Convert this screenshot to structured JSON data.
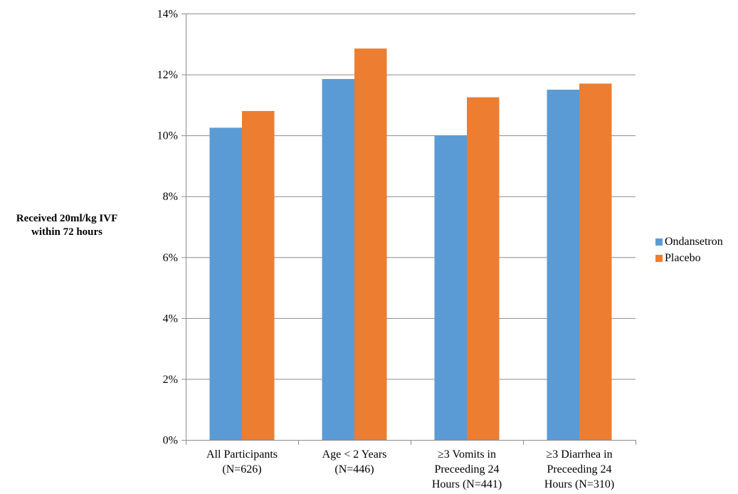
{
  "chart_data": {
    "type": "bar",
    "ylabel": "Received 20ml/kg IVF within 72 hours",
    "ylabel_lines": [
      "Received 20ml/kg IVF",
      "within 72 hours"
    ],
    "xlabel": "",
    "ylim": [
      0,
      14
    ],
    "yticks": [
      0,
      2,
      4,
      6,
      8,
      10,
      12,
      14
    ],
    "ytick_labels": [
      "0%",
      "2%",
      "4%",
      "6%",
      "8%",
      "10%",
      "12%",
      "14%"
    ],
    "grid": true,
    "legend_position": "right",
    "categories": [
      [
        "All Participants",
        "(N=626)"
      ],
      [
        "Age < 2 Years",
        "(N=446)"
      ],
      [
        "≥3 Vomits in",
        "Preceeding 24",
        "Hours (N=441)"
      ],
      [
        "≥3 Diarrhea in",
        "Preceeding 24",
        "Hours (N=310)"
      ]
    ],
    "series": [
      {
        "name": "Ondansetron",
        "color": "#5B9BD5",
        "values": [
          10.25,
          11.85,
          10.0,
          11.5
        ]
      },
      {
        "name": "Placebo",
        "color": "#ED7D31",
        "values": [
          10.8,
          12.85,
          11.25,
          11.7
        ]
      }
    ]
  }
}
